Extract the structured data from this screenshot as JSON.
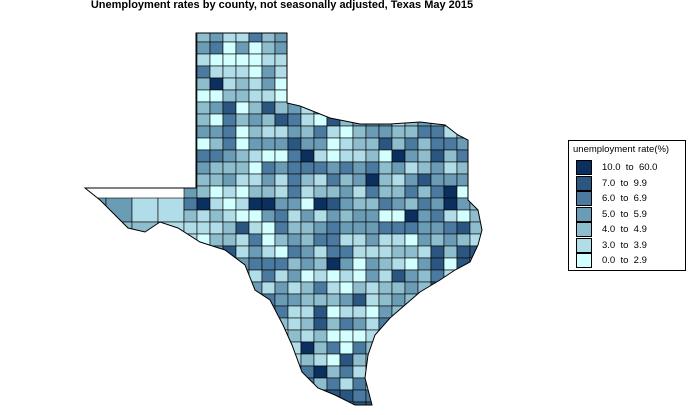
{
  "title": "Unemployment rates by county, not seasonally adjusted,  Texas  May 2015",
  "legend": {
    "title": "unemployment rate(%)",
    "items": [
      {
        "label": "10.0  to  60.0",
        "color": "#0b2f5e"
      },
      {
        "label": "7.0  to  9.9",
        "color": "#2b5681"
      },
      {
        "label": "6.0  to  6.9",
        "color": "#4a7a9f"
      },
      {
        "label": "5.0  to  5.9",
        "color": "#6b9cb6"
      },
      {
        "label": "4.0  to  4.9",
        "color": "#8ebdcd"
      },
      {
        "label": "3.0  to  3.9",
        "color": "#b0dde7"
      },
      {
        "label": "0.0  to  2.9",
        "color": "#d2ffff"
      }
    ]
  }
}
